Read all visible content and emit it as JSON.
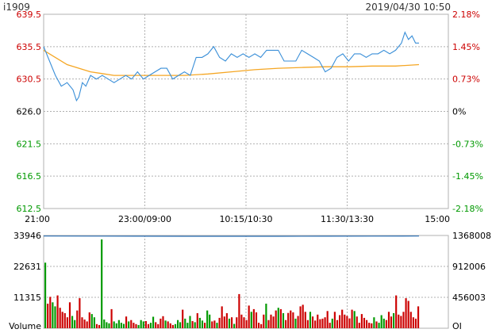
{
  "header": {
    "symbol": "i1909",
    "datetime": "2019/04/30 10:50"
  },
  "colors": {
    "price_line": "#3a8fd8",
    "average_line": "#f5a623",
    "open_interest_line": "#2a6fb5",
    "up_text": "#cc0000",
    "down_text": "#009900",
    "neutral_text": "#000000",
    "grid": "#b0b0b0",
    "volume_up": "#cc0000",
    "volume_down": "#009900"
  },
  "chart_data": [
    {
      "type": "line",
      "name": "price-chart",
      "reference_price": 626.0,
      "ylim": [
        612.5,
        639.5
      ],
      "y_ticks_left": [
        "639.5",
        "635.5",
        "630.5",
        "626.0",
        "621.5",
        "616.5",
        "612.5"
      ],
      "y_ticks_right": [
        "2.18%",
        "1.45%",
        "0.73%",
        "0%",
        "-0.73%",
        "-1.45%",
        "-2.18%"
      ],
      "x_ticks": [
        "21:00",
        "23:00/09:00",
        "10:15/10:30",
        "11:30/13:30",
        "15:00"
      ],
      "total_minutes": 345,
      "series": [
        {
          "name": "",
          "role": "price",
          "x_minutes": [
            0,
            5,
            10,
            15,
            20,
            25,
            28,
            30,
            33,
            36,
            40,
            45,
            50,
            55,
            60,
            65,
            70,
            75,
            80,
            85,
            90,
            95,
            100,
            105,
            110,
            115,
            120,
            125,
            130,
            135,
            140,
            145,
            150,
            155,
            160,
            165,
            170,
            175,
            180,
            185,
            190,
            195,
            200,
            205,
            210,
            215,
            220,
            225,
            230,
            235,
            240,
            245,
            250,
            255,
            260,
            265,
            270,
            275,
            280,
            285,
            290,
            295,
            300,
            305,
            308,
            311,
            314,
            317,
            320
          ],
          "values": [
            635.0,
            633.0,
            631.0,
            629.5,
            630.0,
            629.0,
            627.5,
            628.0,
            630.0,
            629.5,
            631.0,
            630.5,
            631.0,
            630.5,
            630.0,
            630.5,
            631.0,
            630.5,
            631.5,
            630.5,
            631.0,
            631.5,
            632.0,
            632.0,
            630.5,
            631.0,
            631.5,
            631.0,
            633.5,
            633.5,
            634.0,
            635.0,
            633.5,
            633.0,
            634.0,
            633.5,
            634.0,
            633.5,
            634.0,
            633.5,
            634.5,
            634.5,
            634.5,
            633.0,
            633.0,
            633.0,
            634.5,
            634.0,
            633.5,
            633.0,
            631.5,
            632.0,
            633.5,
            634.0,
            633.0,
            634.0,
            634.0,
            633.5,
            634.0,
            634.0,
            634.5,
            634.0,
            634.5,
            635.5,
            637.0,
            636.0,
            636.5,
            635.5,
            635.5
          ]
        },
        {
          "name": "",
          "role": "average",
          "x_minutes": [
            0,
            20,
            40,
            60,
            80,
            100,
            120,
            140,
            160,
            180,
            200,
            220,
            240,
            260,
            280,
            300,
            320
          ],
          "values": [
            634.5,
            632.5,
            631.5,
            631.0,
            631.0,
            631.0,
            631.0,
            631.2,
            631.5,
            631.8,
            632.0,
            632.1,
            632.2,
            632.2,
            632.3,
            632.3,
            632.5
          ]
        }
      ]
    },
    {
      "type": "bar",
      "name": "volume-chart",
      "label": "Volume",
      "right_label": "OI",
      "ylim": [
        0,
        33946
      ],
      "y_ticks_left": [
        "33946",
        "22631",
        "11315"
      ],
      "y_ticks_right": [
        "1368008",
        "912006",
        "456003"
      ],
      "oi_range": [
        0,
        1368008
      ],
      "open_interest": {
        "x_minutes": [
          0,
          40,
          80,
          120,
          160,
          200,
          240,
          280,
          320
        ],
        "values": [
          1360000,
          1359000,
          1357000,
          1356500,
          1356000,
          1356500,
          1357500,
          1358500,
          1359500
        ]
      },
      "volume_values": [
        24000,
        9000,
        11500,
        9500,
        8000,
        12000,
        7500,
        6000,
        5500,
        4000,
        9500,
        4500,
        3000,
        6500,
        11000,
        4000,
        3200,
        2500,
        5800,
        5200,
        4000,
        1500,
        1200,
        32500,
        3200,
        2200,
        1800,
        7000,
        2500,
        1800,
        3000,
        2000,
        1600,
        4300,
        2500,
        3000,
        2000,
        1500,
        1200,
        3000,
        2500,
        2600,
        1500,
        2000,
        4200,
        2200,
        1500,
        3500,
        4400,
        2800,
        2500,
        1800,
        1200,
        1500,
        3000,
        2200,
        6800,
        3500,
        2000,
        4500,
        2600,
        2200,
        5500,
        3800,
        2800,
        2000,
        6500,
        5000,
        2500,
        2800,
        2000,
        3800,
        8000,
        4300,
        5500,
        3500,
        4000,
        1600,
        4000,
        12500,
        5000,
        4000,
        3000,
        8300,
        6000,
        7000,
        5800,
        2000,
        1500,
        5000,
        9000,
        3000,
        5000,
        4300,
        6500,
        7500,
        7000,
        5500,
        3000,
        5600,
        6500,
        5800,
        3500,
        4500,
        8000,
        8600,
        6000,
        3000,
        6000,
        4300,
        2800,
        5000,
        3300,
        3500,
        4000,
        6300,
        2000,
        3500,
        6000,
        3000,
        4800,
        6800,
        5000,
        4500,
        3600,
        6800,
        6300,
        4300,
        2000,
        5200,
        3800,
        3000,
        2000,
        1800,
        4000,
        2500,
        2000,
        4800,
        3500,
        3000,
        6000,
        4300,
        5500,
        12000,
        5000,
        4500,
        6000,
        11000,
        10000,
        6000,
        4000,
        3500,
        8000
      ]
    }
  ]
}
